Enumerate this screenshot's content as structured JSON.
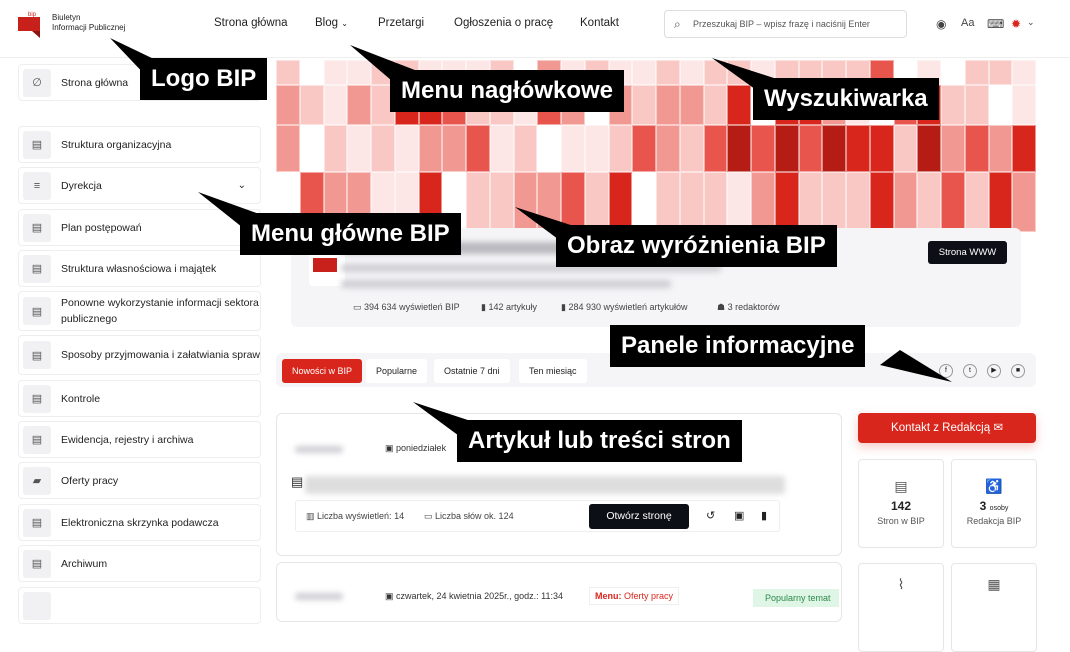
{
  "header": {
    "logo_small": "bip",
    "logo_line1": "Biuletyn",
    "logo_line2": "Informacji Publicznej",
    "nav": [
      "Strona główna",
      "Blog",
      "Przetargi",
      "Ogłoszenia o pracę",
      "Kontakt"
    ],
    "search_placeholder": "Przeszukaj BIP – wpisz frazę i naciśnij Enter",
    "icons": [
      "eye-icon",
      "font-size-icon",
      "keyboard-icon",
      "settings-icon"
    ]
  },
  "sidebar": {
    "items": [
      {
        "label": "Strona główna",
        "icon": "home-icon"
      },
      {
        "label": "Struktura organizacyjna",
        "icon": "document-icon"
      },
      {
        "label": "Dyrekcja",
        "icon": "list-icon",
        "expandable": true
      },
      {
        "label": "Plan postępowań",
        "icon": "document-icon"
      },
      {
        "label": "Struktura własnościowa i majątek",
        "icon": "document-icon"
      },
      {
        "label": "Ponowne wykorzystanie informacji sektora publicznego",
        "icon": "document-icon"
      },
      {
        "label": "Sposoby przyjmowania i załatwiania spraw",
        "icon": "document-icon"
      },
      {
        "label": "Kontrole",
        "icon": "document-icon"
      },
      {
        "label": "Ewidencja, rejestry i archiwa",
        "icon": "document-icon"
      },
      {
        "label": "Oferty pracy",
        "icon": "folder-icon"
      },
      {
        "label": "Elektroniczna skrzynka podawcza",
        "icon": "document-icon"
      },
      {
        "label": "Archiwum",
        "icon": "document-icon"
      }
    ]
  },
  "info": {
    "www_button": "Strona WWW",
    "stats": [
      "394 634 wyświetleń BIP",
      "142 artykuły",
      "284 930 wyświetleń artykułów",
      "3 redaktorów"
    ]
  },
  "tabs": [
    "Nowości w BIP",
    "Popularne",
    "Ostatnie 7 dni",
    "Ten miesiąc"
  ],
  "social": [
    "facebook-icon",
    "twitter-icon",
    "youtube-icon",
    "instagram-icon"
  ],
  "article1": {
    "date": "poniedziałek",
    "views": "Liczba wyświetleń: 14",
    "words": "Liczba słów ok. 124",
    "open_button": "Otwórz stronę"
  },
  "article2": {
    "date": "czwartek, 24 kwietnia 2025r., godz.: 11:34",
    "menu_label": "Menu:",
    "menu_value": "Oferty pracy",
    "badge": "Popularny temat"
  },
  "right": {
    "contact_button": "Kontakt z Redakcją",
    "tiles": [
      {
        "value": "142",
        "label": "Stron w BIP"
      },
      {
        "value": "3",
        "unit": "osoby",
        "label": "Redakcja BIP"
      }
    ]
  },
  "callouts": {
    "logo": "Logo BIP",
    "header_menu": "Menu nagłówkowe",
    "search": "Wyszukiwarka",
    "main_menu": "Menu główne BIP",
    "banner": "Obraz wyróżnienia BIP",
    "panels": "Panele informacyjne",
    "article": "Artykuł lub treści stron"
  },
  "colors": {
    "accent": "#d9261c",
    "dark": "#0d0f17"
  }
}
